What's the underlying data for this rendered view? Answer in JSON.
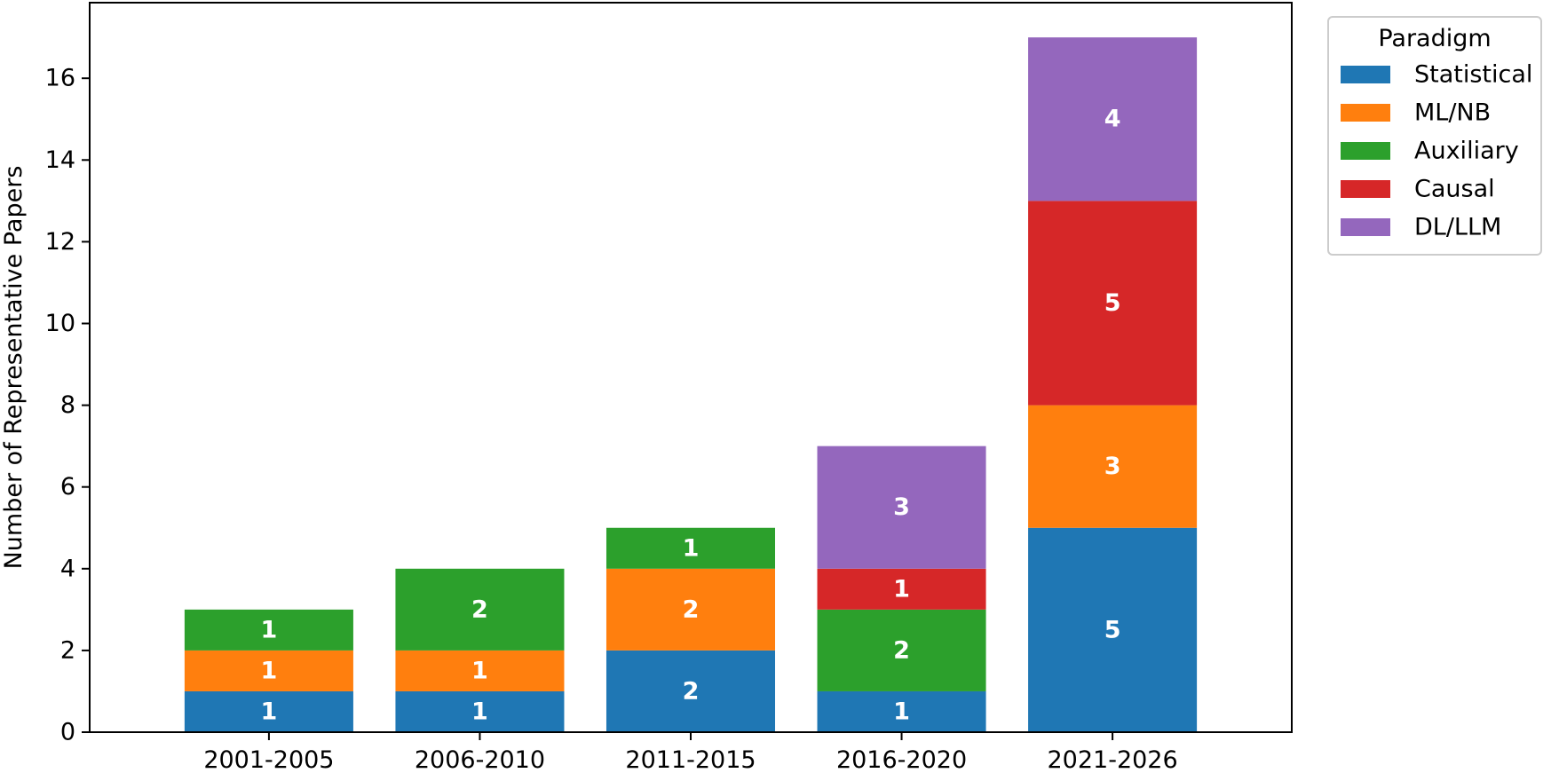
{
  "chart_data": {
    "type": "bar",
    "stacked": true,
    "categories": [
      "2001-2005",
      "2006-2010",
      "2011-2015",
      "2016-2020",
      "2021-2026"
    ],
    "series": [
      {
        "name": "Statistical",
        "color": "#1f77b4",
        "values": [
          1,
          1,
          2,
          1,
          5
        ]
      },
      {
        "name": "ML/NB",
        "color": "#ff7f0e",
        "values": [
          1,
          1,
          2,
          0,
          3
        ]
      },
      {
        "name": "Auxiliary",
        "color": "#2ca02c",
        "values": [
          1,
          2,
          1,
          2,
          0
        ]
      },
      {
        "name": "Causal",
        "color": "#d62728",
        "values": [
          0,
          0,
          0,
          1,
          5
        ]
      },
      {
        "name": "DL/LLM",
        "color": "#9467bd",
        "values": [
          0,
          0,
          0,
          3,
          4
        ]
      }
    ],
    "xlabel": "",
    "ylabel": "Number of Representative Papers",
    "ylim": [
      0,
      17.85
    ],
    "yticks": [
      0,
      2,
      4,
      6,
      8,
      10,
      12,
      14,
      16
    ],
    "legend": {
      "title": "Paradigm",
      "placement": "outside-top-right"
    },
    "grid": false,
    "data_labels": true
  }
}
